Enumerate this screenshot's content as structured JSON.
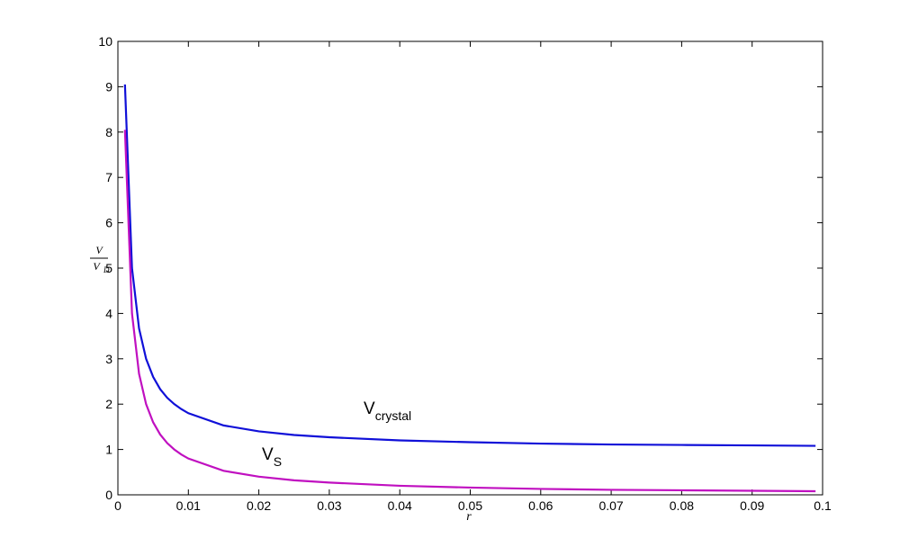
{
  "chart_data": {
    "type": "line",
    "xlabel": "r",
    "ylabel": {
      "numerator": "V",
      "denominator": "V",
      "denominator_subscript": "D"
    },
    "x": [
      0.001,
      0.002,
      0.003,
      0.004,
      0.005,
      0.006,
      0.007,
      0.008,
      0.009,
      0.01,
      0.015,
      0.02,
      0.025,
      0.03,
      0.04,
      0.05,
      0.06,
      0.07,
      0.08,
      0.09,
      0.099
    ],
    "series": [
      {
        "name": "V",
        "subscript": "crystal",
        "color": "#1010d8",
        "values": [
          9.05,
          5,
          3.67,
          3,
          2.6,
          2.33,
          2.14,
          2,
          1.89,
          1.8,
          1.53,
          1.4,
          1.32,
          1.27,
          1.2,
          1.16,
          1.13,
          1.11,
          1.1,
          1.09,
          1.08
        ]
      },
      {
        "name": "V",
        "subscript": "S",
        "color": "#c010c0",
        "values": [
          8.05,
          4,
          2.67,
          2,
          1.6,
          1.33,
          1.14,
          1,
          0.89,
          0.8,
          0.53,
          0.4,
          0.32,
          0.27,
          0.2,
          0.16,
          0.13,
          0.11,
          0.1,
          0.09,
          0.08
        ]
      }
    ],
    "xlim": [
      0,
      0.1
    ],
    "xticks": [
      0,
      0.01,
      0.02,
      0.03,
      0.04,
      0.05,
      0.06,
      0.07,
      0.08,
      0.09,
      0.1
    ],
    "ylim": [
      0,
      10
    ],
    "yticks": [
      0,
      1,
      2,
      3,
      4,
      5,
      6,
      7,
      8,
      9,
      10
    ],
    "grid": false
  }
}
